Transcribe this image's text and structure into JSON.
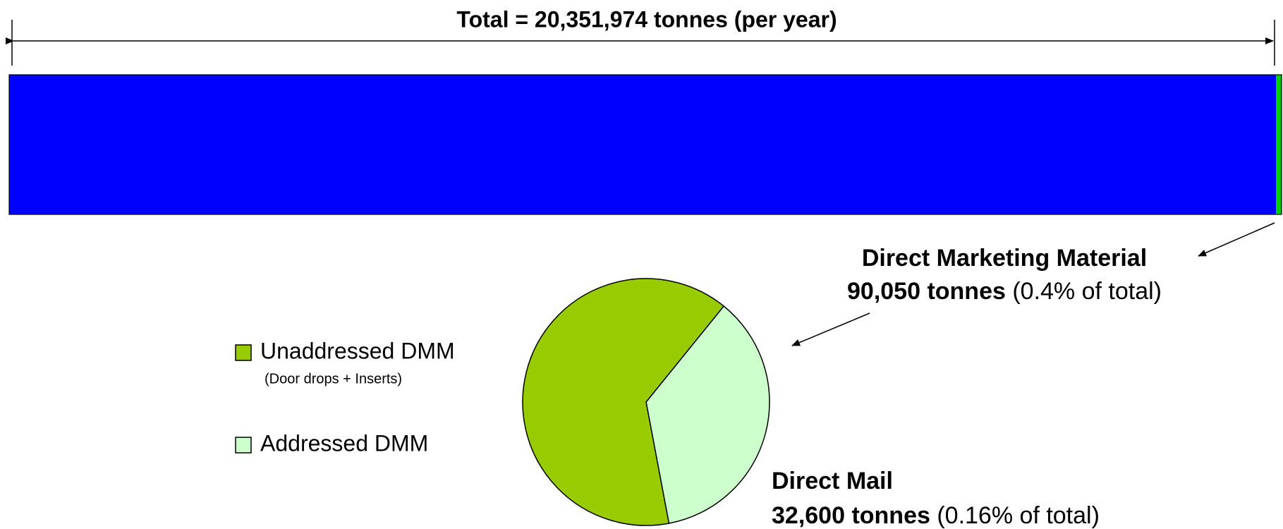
{
  "chart_data": [
    {
      "type": "stacked-bar",
      "title": "Total = 20,351,974 tonnes (per year)",
      "xlim": [
        0,
        20351974
      ],
      "series": [
        {
          "color": "#0000ff",
          "values": [
            20261924
          ]
        },
        {
          "color": "#00cc00",
          "values": [
            90050
          ]
        }
      ],
      "annotation": {
        "title": "Direct Marketing Material",
        "amount": "90,050 tonnes",
        "share": "(0.4% of total)"
      }
    },
    {
      "type": "pie",
      "categories": [
        "Unaddressed DMM",
        "Addressed DMM"
      ],
      "category_notes": [
        "(Door drops + Inserts)",
        null
      ],
      "values": [
        57450,
        32600
      ],
      "colors": [
        "#99cc00",
        "#ccffcc"
      ],
      "annotation": {
        "title": "Direct Mail",
        "amount": "32,600 tonnes",
        "share": "(0.16% of total)"
      }
    }
  ]
}
